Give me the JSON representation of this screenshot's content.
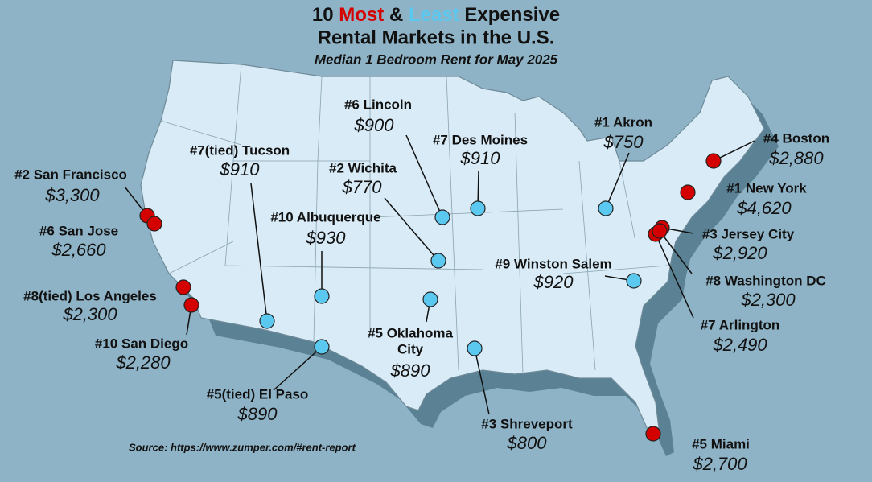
{
  "header": {
    "title_parts": [
      "10",
      "Most",
      "&",
      "Least",
      "Expensive"
    ],
    "title_line2": "Rental Markets in the U.S.",
    "subtitle": "Median 1 Bedroom Rent for May 2025"
  },
  "legend_colors": {
    "most": "#d40000",
    "least": "#5bc8f0"
  },
  "markets": [
    {
      "name": "#1 New York",
      "rent": "$4,620",
      "group": "most"
    },
    {
      "name": "#2 San Francisco",
      "rent": "$3,300",
      "group": "most"
    },
    {
      "name": "#3 Jersey City",
      "rent": "$2,920",
      "group": "most"
    },
    {
      "name": "#4 Boston",
      "rent": "$2,880",
      "group": "most"
    },
    {
      "name": "#5 Miami",
      "rent": "$2,700",
      "group": "most"
    },
    {
      "name": "#6 San Jose",
      "rent": "$2,660",
      "group": "most"
    },
    {
      "name": "#7 Arlington",
      "rent": "$2,490",
      "group": "most"
    },
    {
      "name": "#8(tied) Los Angeles",
      "rent": "$2,300",
      "group": "most"
    },
    {
      "name": "#8 Washington DC",
      "rent": "$2,300",
      "group": "most"
    },
    {
      "name": "#10 San Diego",
      "rent": "$2,280",
      "group": "most"
    },
    {
      "name": "#1 Akron",
      "rent": "$750",
      "group": "least"
    },
    {
      "name": "#2 Wichita",
      "rent": "$770",
      "group": "least"
    },
    {
      "name": "#3 Shreveport",
      "rent": "$800",
      "group": "least"
    },
    {
      "name": [
        "#5 Oklahoma",
        "City"
      ],
      "rent": "$890",
      "group": "least"
    },
    {
      "name": "#5(tied) El Paso",
      "rent": "$890",
      "group": "least"
    },
    {
      "name": "#6 Lincoln",
      "rent": "$900",
      "group": "least"
    },
    {
      "name": "#7 Des Moines",
      "rent": "$910",
      "group": "least"
    },
    {
      "name": "#7(tied) Tucson",
      "rent": "$910",
      "group": "least"
    },
    {
      "name": "#9 Winston Salem",
      "rent": "$920",
      "group": "least"
    },
    {
      "name": "#10 Albuquerque",
      "rent": "$930",
      "group": "least"
    }
  ],
  "source": "Source: https://www.zumper.com/#rent-report"
}
